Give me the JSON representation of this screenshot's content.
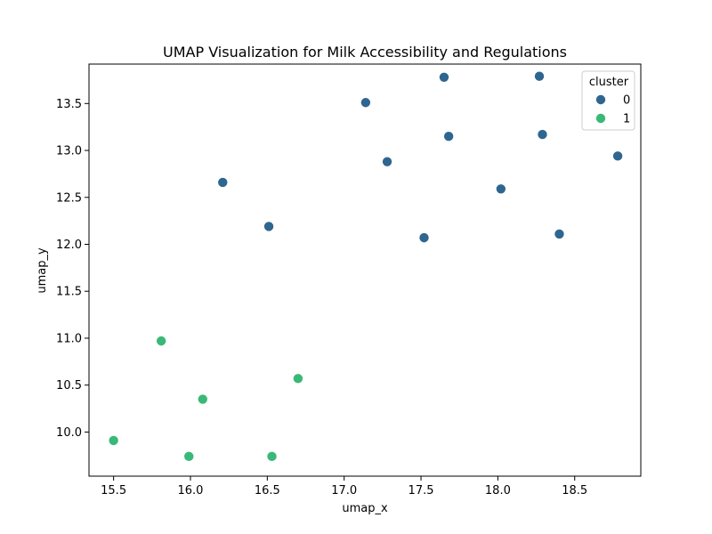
{
  "chart_data": {
    "type": "scatter",
    "title": "UMAP Visualization for Milk Accessibility and Regulations",
    "xlabel": "umap_x",
    "ylabel": "umap_y",
    "xlim": [
      15.34,
      18.93
    ],
    "ylim": [
      9.53,
      13.92
    ],
    "xticks": [
      15.5,
      16.0,
      16.5,
      17.0,
      17.5,
      18.0,
      18.5
    ],
    "yticks": [
      10.0,
      10.5,
      11.0,
      11.5,
      12.0,
      12.5,
      13.0,
      13.5
    ],
    "xtick_labels": [
      "15.5",
      "16.0",
      "16.5",
      "17.0",
      "17.5",
      "18.0",
      "18.5"
    ],
    "ytick_labels": [
      "10.0",
      "10.5",
      "11.0",
      "11.5",
      "12.0",
      "12.5",
      "13.0",
      "13.5"
    ],
    "grid": false,
    "legend": {
      "title": "cluster",
      "placement": "top-right"
    },
    "series": [
      {
        "name": "0",
        "color": "#2f6690",
        "points": [
          {
            "x": 16.21,
            "y": 12.66
          },
          {
            "x": 16.51,
            "y": 12.19
          },
          {
            "x": 17.14,
            "y": 13.51
          },
          {
            "x": 17.28,
            "y": 12.88
          },
          {
            "x": 17.52,
            "y": 12.07
          },
          {
            "x": 17.65,
            "y": 13.78
          },
          {
            "x": 17.68,
            "y": 13.15
          },
          {
            "x": 18.02,
            "y": 12.59
          },
          {
            "x": 18.27,
            "y": 13.79
          },
          {
            "x": 18.29,
            "y": 13.17
          },
          {
            "x": 18.4,
            "y": 12.11
          },
          {
            "x": 18.78,
            "y": 12.94
          }
        ]
      },
      {
        "name": "1",
        "color": "#3ab878",
        "points": [
          {
            "x": 15.5,
            "y": 9.91
          },
          {
            "x": 15.81,
            "y": 10.97
          },
          {
            "x": 15.99,
            "y": 9.74
          },
          {
            "x": 16.08,
            "y": 10.35
          },
          {
            "x": 16.53,
            "y": 9.74
          },
          {
            "x": 16.7,
            "y": 10.57
          }
        ]
      }
    ]
  }
}
